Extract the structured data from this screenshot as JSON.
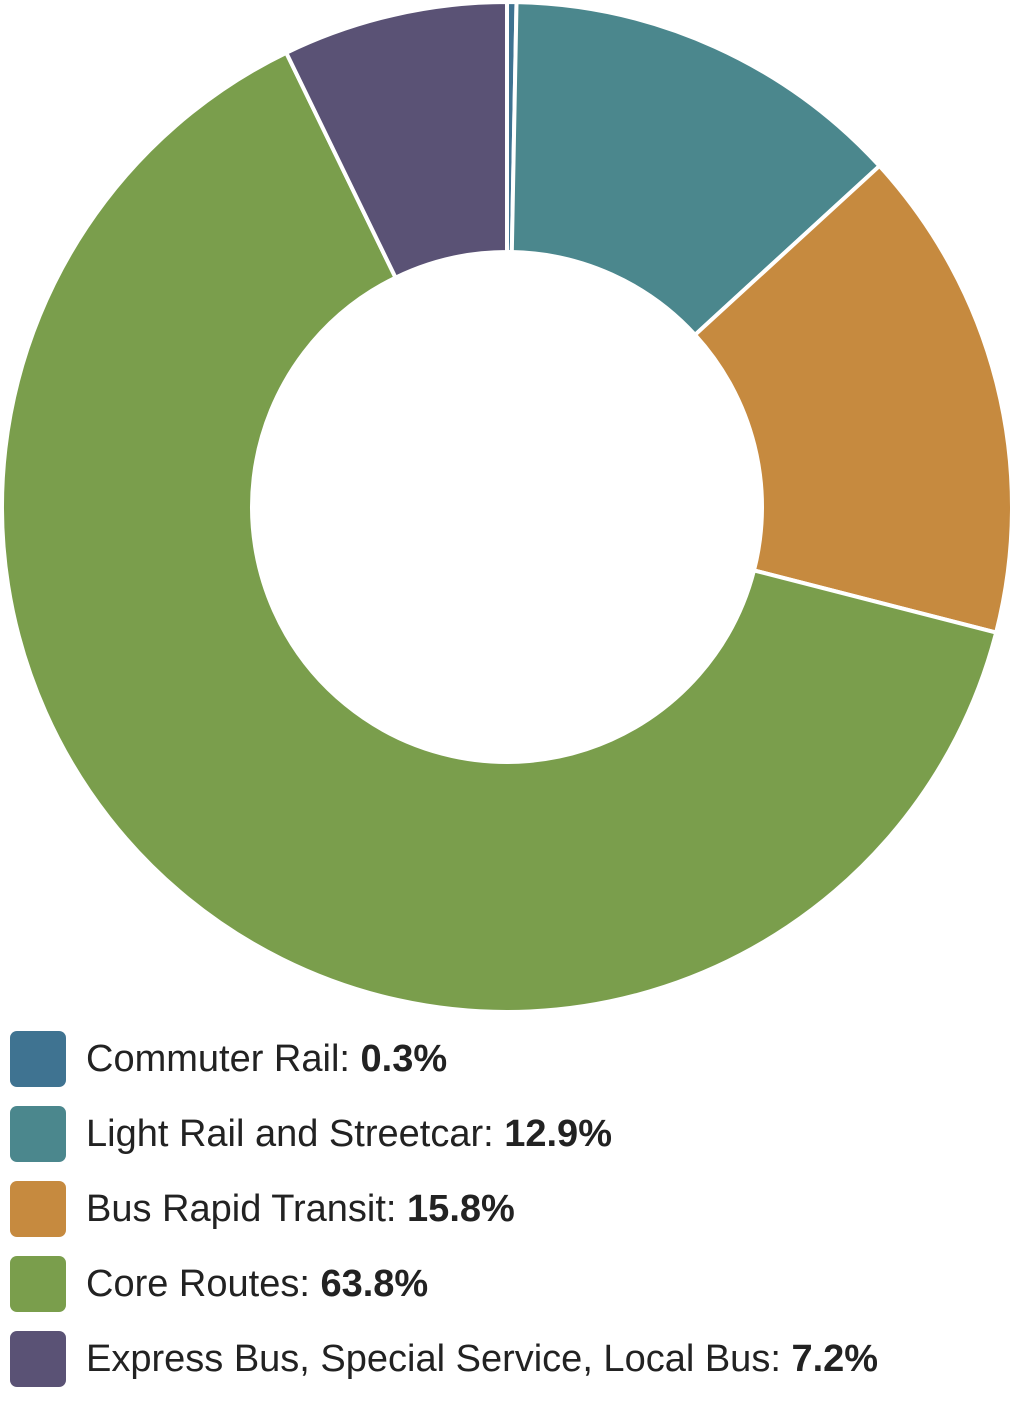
{
  "chart_data": {
    "type": "pie",
    "title": "",
    "style": "donut",
    "start_angle_deg": 0,
    "direction": "clockwise",
    "slices": [
      {
        "label": "Commuter Rail",
        "value": 0.3,
        "display": "0.3%",
        "color": "#3f7391"
      },
      {
        "label": "Light Rail and Streetcar",
        "value": 12.9,
        "display": "12.9%",
        "color": "#4b878d"
      },
      {
        "label": "Bus Rapid Transit",
        "value": 15.8,
        "display": "15.8%",
        "color": "#c68a3f"
      },
      {
        "label": "Core Routes",
        "value": 63.8,
        "display": "63.8%",
        "color": "#7a9e4c"
      },
      {
        "label": "Express Bus, Special Service, Local Bus",
        "value": 7.2,
        "display": "7.2%",
        "color": "#5a5275"
      }
    ],
    "legend": {
      "placement": "bottom-left",
      "separator": ": "
    }
  }
}
